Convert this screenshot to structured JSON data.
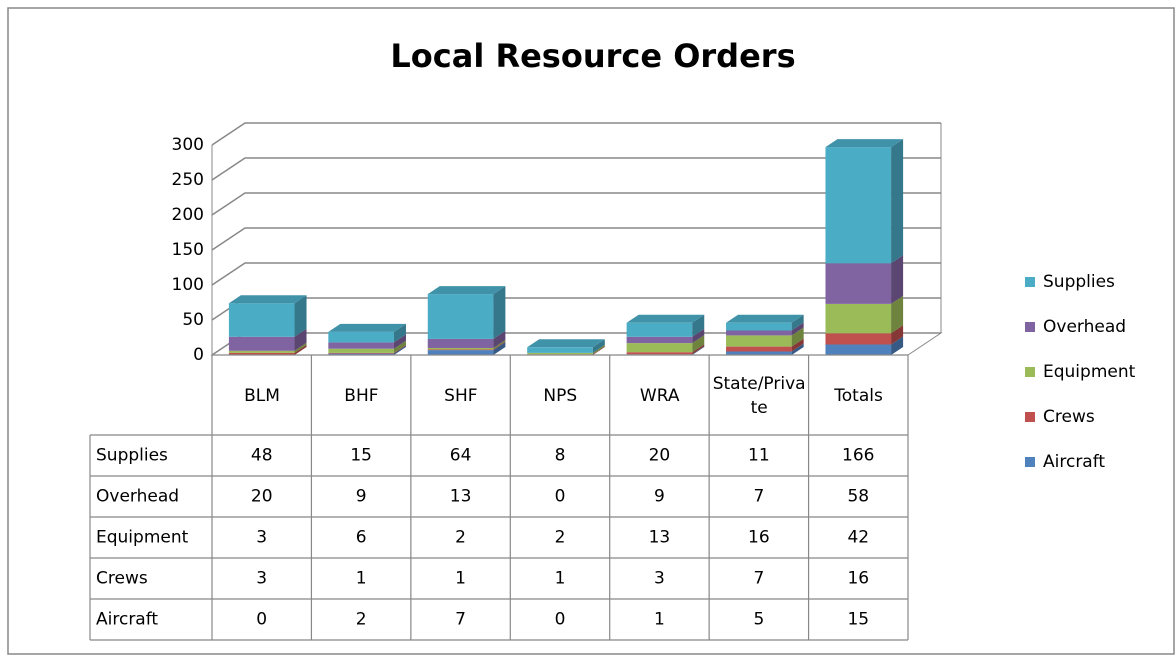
{
  "chart_data": {
    "type": "bar",
    "stacked": true,
    "title": "Local Resource Orders",
    "categories": [
      "BLM",
      "BHF",
      "SHF",
      "NPS",
      "WRA",
      "State/Private",
      "Totals"
    ],
    "series": [
      {
        "name": "Supplies",
        "color": "#4bacc6",
        "values": [
          48,
          15,
          64,
          8,
          20,
          11,
          166
        ]
      },
      {
        "name": "Overhead",
        "color": "#8064a2",
        "values": [
          20,
          9,
          13,
          0,
          9,
          7,
          58
        ]
      },
      {
        "name": "Equipment",
        "color": "#9bbb59",
        "values": [
          3,
          6,
          2,
          2,
          13,
          16,
          42
        ]
      },
      {
        "name": "Crews",
        "color": "#c0504d",
        "values": [
          3,
          1,
          1,
          1,
          3,
          7,
          16
        ]
      },
      {
        "name": "Aircraft",
        "color": "#4f81bd",
        "values": [
          0,
          2,
          7,
          0,
          1,
          5,
          15
        ]
      }
    ],
    "ylim": [
      0,
      300
    ],
    "yticks": [
      0,
      50,
      100,
      150,
      200,
      250,
      300
    ],
    "grid": true,
    "legend": "right"
  }
}
